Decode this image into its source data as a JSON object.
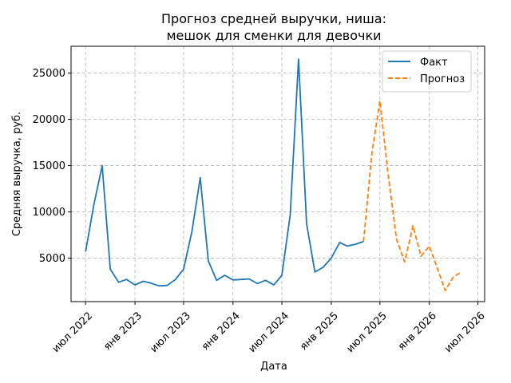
{
  "chart_data": {
    "type": "line",
    "title_lines": [
      "Прогноз средней выручки, ниша:",
      "мешок для сменки для девочки"
    ],
    "xlabel": "Дата",
    "ylabel": "Средняя выручка, руб.",
    "x_ticks": [
      "июл 2022",
      "янв 2023",
      "июл 2023",
      "янв 2024",
      "июл 2024",
      "янв 2025",
      "июл 2025",
      "янв 2026",
      "июл 2026"
    ],
    "y_ticks": [
      "5000",
      "10000",
      "15000",
      "20000",
      "25000"
    ],
    "y_tick_values": [
      5000,
      10000,
      15000,
      20000,
      25000
    ],
    "xlim": [
      "2022-05-08",
      "2026-07-26"
    ],
    "ylim": [
      300,
      27900
    ],
    "grid": true,
    "legend_position": "top-right",
    "series": [
      {
        "name": "Факт",
        "color": "#1f77b4",
        "style": "solid",
        "x": [
          "2022-07",
          "2022-08",
          "2022-09",
          "2022-10",
          "2022-11",
          "2022-12",
          "2023-01",
          "2023-02",
          "2023-03",
          "2023-04",
          "2023-05",
          "2023-06",
          "2023-07",
          "2023-08",
          "2023-09",
          "2023-10",
          "2023-11",
          "2023-12",
          "2024-01",
          "2024-02",
          "2024-03",
          "2024-04",
          "2024-05",
          "2024-06",
          "2024-07",
          "2024-08",
          "2024-09",
          "2024-10",
          "2024-11",
          "2024-12",
          "2025-01",
          "2025-02",
          "2025-03",
          "2025-04",
          "2025-05"
        ],
        "y": [
          5700,
          10800,
          15000,
          3800,
          2400,
          2700,
          2100,
          2500,
          2300,
          2000,
          2050,
          2700,
          3800,
          7900,
          13700,
          4700,
          2600,
          3150,
          2650,
          2700,
          2750,
          2250,
          2600,
          2100,
          3150,
          9700,
          26500,
          8700,
          3500,
          4000,
          5000,
          6700,
          6300,
          6500,
          6800
        ]
      },
      {
        "name": "Прогноз",
        "color": "#ff7f0e",
        "style": "dashed",
        "x": [
          "2025-05",
          "2025-06",
          "2025-07",
          "2025-08",
          "2025-09",
          "2025-10",
          "2025-11",
          "2025-12",
          "2026-01",
          "2026-02",
          "2026-03",
          "2026-04",
          "2026-05",
          "2026-06"
        ],
        "y": [
          6800,
          16300,
          22000,
          14000,
          7000,
          4600,
          8500,
          5200,
          6300,
          3800,
          1500,
          3000,
          3500,
          null
        ]
      }
    ]
  }
}
